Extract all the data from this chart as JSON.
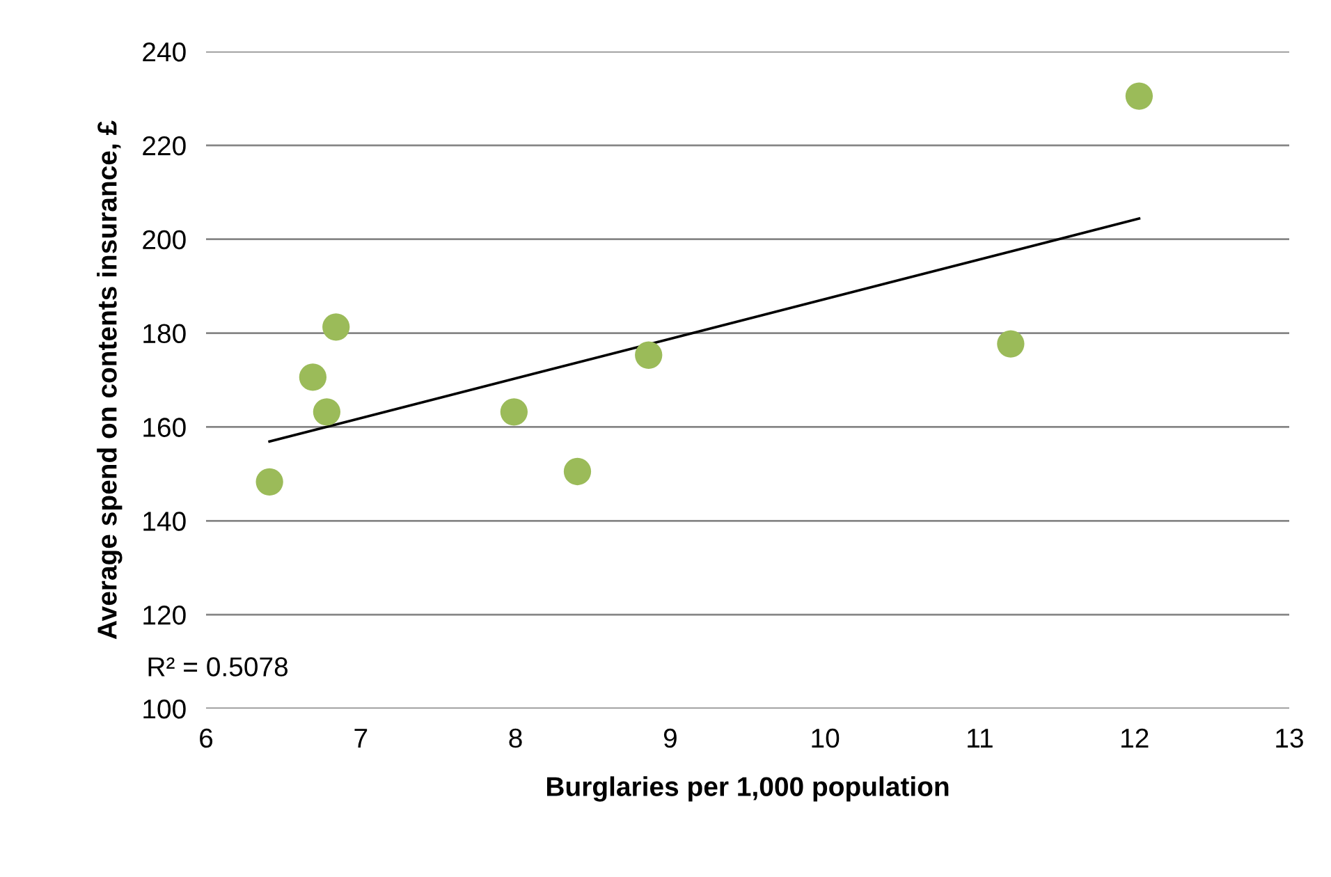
{
  "chart_data": {
    "type": "scatter",
    "xlabel": "Burglaries per 1,000 population",
    "ylabel": "Average spend on contents insurance, £",
    "xlim": [
      6,
      13
    ],
    "xticks": [
      6,
      7,
      8,
      9,
      10,
      11,
      12,
      13
    ],
    "ylim": [
      100,
      240
    ],
    "yticks": [
      100,
      120,
      140,
      160,
      180,
      200,
      220,
      240
    ],
    "grid": "y",
    "legend": false,
    "marker": "circle",
    "series": [
      {
        "color": "#9bbb59",
        "x": [
          6.41,
          6.69,
          6.78,
          6.84,
          7.99,
          8.4,
          8.86,
          11.2,
          12.03
        ],
        "values": [
          148.3,
          170.6,
          163.2,
          181.3,
          163.2,
          150.5,
          175.3,
          177.7,
          230.5
        ]
      },
      {
        "type": "line",
        "marker": "none",
        "color": "#000000",
        "x": [
          6.41,
          12.03
        ],
        "values": [
          156.9,
          204.4
        ]
      }
    ],
    "annotations": [
      "R² = 0.5078"
    ]
  }
}
